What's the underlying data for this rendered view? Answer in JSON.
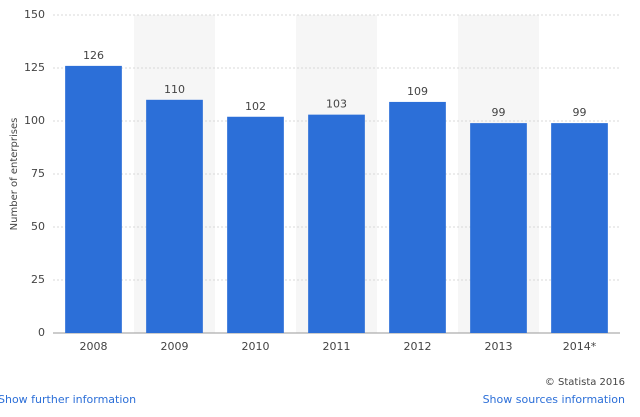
{
  "chart_data": {
    "type": "bar",
    "y_label": "Number of enterprises",
    "categories": [
      "2008",
      "2009",
      "2010",
      "2011",
      "2012",
      "2013",
      "2014*"
    ],
    "values": [
      126,
      110,
      102,
      103,
      109,
      99,
      99
    ],
    "color": "#2c6fd8",
    "ylim": [
      0,
      150
    ],
    "yticks": [
      0,
      25,
      50,
      75,
      100,
      125,
      150
    ],
    "grid": true,
    "source": "© Statista 2016",
    "links": [
      "Show further information",
      "Show sources information"
    ]
  }
}
